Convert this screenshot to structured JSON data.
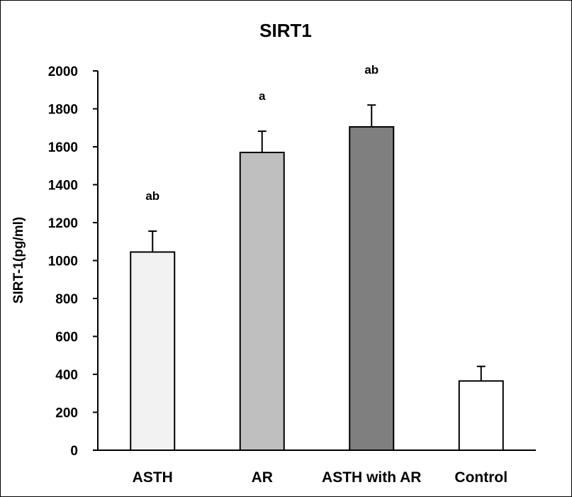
{
  "chart_data": {
    "type": "bar",
    "title": "SIRT1",
    "xlabel": "",
    "ylabel": "SIRT-1(pg/ml)",
    "categories": [
      "ASTH",
      "AR",
      "ASTH with AR",
      "Control"
    ],
    "values": [
      1045,
      1570,
      1705,
      365
    ],
    "errors": [
      110,
      112,
      115,
      77
    ],
    "significance": [
      "ab",
      "a",
      "ab",
      ""
    ],
    "colors": [
      "#f2f2f2",
      "#bfbfbf",
      "#7f7f7f",
      "#ffffff"
    ],
    "ylim": [
      0,
      2000
    ],
    "yticks": [
      0,
      200,
      400,
      600,
      800,
      1000,
      1200,
      1400,
      1600,
      1800,
      2000
    ],
    "grid": false,
    "legend": "none"
  }
}
